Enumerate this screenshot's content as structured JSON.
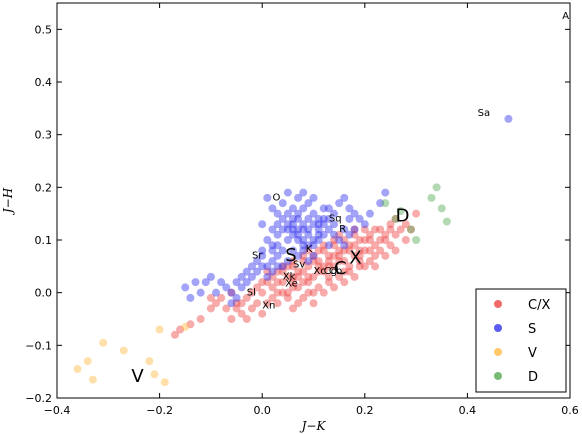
{
  "chart_data": {
    "type": "scatter",
    "xlabel": "J−K",
    "ylabel": "J−H",
    "xlim": [
      -0.4,
      0.6
    ],
    "ylim": [
      -0.2,
      0.55
    ],
    "xticks": [
      "−0.4",
      "−0.2",
      "0.0",
      "0.2",
      "0.4",
      "0.6"
    ],
    "xtick_values": [
      -0.4,
      -0.2,
      0.0,
      0.2,
      0.4,
      0.6
    ],
    "yticks": [
      "−0.2",
      "−0.1",
      "0.0",
      "0.1",
      "0.2",
      "0.3",
      "0.4",
      "0.5"
    ],
    "ytick_values": [
      -0.2,
      -0.1,
      0.0,
      0.1,
      0.2,
      0.3,
      0.4,
      0.5
    ],
    "grid": false,
    "legend_position": "lower-right",
    "series": [
      {
        "name": "C/X",
        "color": "#ee4444",
        "points": [
          [
            0.01,
            -0.02
          ],
          [
            0.02,
            0.01
          ],
          [
            0.03,
            0.0
          ],
          [
            0.04,
            0.02
          ],
          [
            0.05,
            0.03
          ],
          [
            0.06,
            0.01
          ],
          [
            0.07,
            0.04
          ],
          [
            0.08,
            0.02
          ],
          [
            0.09,
            0.05
          ],
          [
            0.1,
            0.03
          ],
          [
            0.11,
            0.06
          ],
          [
            0.12,
            0.04
          ],
          [
            0.13,
            0.07
          ],
          [
            0.14,
            0.05
          ],
          [
            0.15,
            0.08
          ],
          [
            0.16,
            0.06
          ],
          [
            0.17,
            0.09
          ],
          [
            0.18,
            0.07
          ],
          [
            0.19,
            0.1
          ],
          [
            0.2,
            0.08
          ],
          [
            0.21,
            0.11
          ],
          [
            0.22,
            0.09
          ],
          [
            0.23,
            0.12
          ],
          [
            0.24,
            0.1
          ],
          [
            0.25,
            0.13
          ],
          [
            0.26,
            0.11
          ],
          [
            0.05,
            0.05
          ],
          [
            0.08,
            0.07
          ],
          [
            0.11,
            0.08
          ],
          [
            0.14,
            0.1
          ],
          [
            0.03,
            0.04
          ],
          [
            0.06,
            0.06
          ],
          [
            0.09,
            0.08
          ],
          [
            0.12,
            0.09
          ],
          [
            0.15,
            0.11
          ],
          [
            0.18,
            0.12
          ],
          [
            0.0,
            0.0
          ],
          [
            0.02,
            -0.01
          ],
          [
            0.04,
            0.0
          ],
          [
            0.07,
            0.01
          ],
          [
            0.1,
            0.0
          ],
          [
            0.13,
            0.02
          ],
          [
            0.16,
            0.04
          ],
          [
            0.19,
            0.05
          ],
          [
            0.22,
            0.07
          ],
          [
            0.25,
            0.09
          ],
          [
            0.04,
            0.05
          ],
          [
            0.06,
            0.02
          ],
          [
            0.08,
            0.04
          ],
          [
            0.1,
            0.06
          ],
          [
            0.12,
            0.05
          ],
          [
            0.14,
            0.07
          ],
          [
            0.16,
            0.08
          ],
          [
            0.18,
            0.09
          ],
          [
            0.2,
            0.1
          ],
          [
            0.22,
            0.12
          ],
          [
            0.24,
            0.11
          ],
          [
            0.26,
            0.14
          ],
          [
            0.28,
            0.13
          ],
          [
            0.3,
            0.15
          ],
          [
            0.06,
            0.03
          ],
          [
            0.09,
            0.03
          ],
          [
            0.11,
            0.04
          ],
          [
            0.13,
            0.05
          ],
          [
            0.15,
            0.06
          ],
          [
            0.17,
            0.05
          ],
          [
            0.19,
            0.07
          ],
          [
            0.21,
            0.06
          ],
          [
            0.23,
            0.08
          ],
          [
            0.03,
            0.02
          ],
          [
            -0.1,
            -0.03
          ],
          [
            -0.12,
            -0.05
          ],
          [
            -0.14,
            -0.06
          ],
          [
            -0.16,
            -0.07
          ],
          [
            -0.17,
            -0.08
          ],
          [
            -0.08,
            -0.01
          ],
          [
            -0.06,
            0.0
          ],
          [
            -0.05,
            -0.02
          ],
          [
            -0.03,
            -0.01
          ],
          [
            -0.02,
            -0.03
          ],
          [
            -0.01,
            -0.02
          ],
          [
            0.0,
            -0.04
          ],
          [
            -0.04,
            -0.04
          ],
          [
            -0.03,
            -0.05
          ],
          [
            -0.09,
            -0.02
          ],
          [
            -0.07,
            -0.03
          ],
          [
            -0.1,
            -0.01
          ],
          [
            -0.05,
            -0.03
          ],
          [
            -0.02,
            0.0
          ],
          [
            0.01,
            0.02
          ],
          [
            0.05,
            -0.01
          ],
          [
            0.07,
            -0.02
          ],
          [
            0.09,
            0.0
          ],
          [
            0.11,
            0.01
          ],
          [
            0.13,
            0.03
          ],
          [
            0.15,
            0.03
          ],
          [
            0.17,
            0.04
          ],
          [
            0.19,
            0.06
          ],
          [
            0.21,
            0.08
          ],
          [
            0.23,
            0.1
          ],
          [
            0.25,
            0.12
          ],
          [
            0.27,
            0.12
          ],
          [
            0.02,
            0.03
          ],
          [
            0.04,
            0.04
          ],
          [
            0.06,
            0.05
          ],
          [
            0.08,
            0.06
          ],
          [
            0.1,
            0.07
          ],
          [
            0.12,
            0.08
          ],
          [
            0.14,
            0.09
          ],
          [
            0.16,
            0.1
          ],
          [
            0.18,
            0.11
          ],
          [
            0.2,
            0.12
          ],
          [
            0.06,
            -0.03
          ],
          [
            0.08,
            -0.01
          ],
          [
            0.1,
            -0.02
          ],
          [
            0.12,
            0.0
          ],
          [
            0.14,
            0.01
          ],
          [
            0.16,
            0.02
          ],
          [
            0.18,
            0.03
          ],
          [
            0.2,
            0.05
          ],
          [
            0.22,
            0.05
          ],
          [
            0.24,
            0.07
          ],
          [
            0.26,
            0.08
          ],
          [
            0.28,
            0.1
          ],
          [
            0.29,
            0.12
          ],
          [
            -0.01,
            0.01
          ],
          [
            0.0,
            0.02
          ],
          [
            0.01,
            0.04
          ],
          [
            -0.04,
            -0.02
          ],
          [
            -0.06,
            -0.05
          ],
          [
            0.03,
            -0.02
          ],
          [
            0.05,
            0.0
          ],
          [
            0.07,
            0.03
          ],
          [
            0.09,
            0.02
          ],
          [
            0.11,
            0.05
          ],
          [
            0.13,
            0.06
          ],
          [
            0.15,
            0.07
          ],
          [
            0.17,
            0.08
          ],
          [
            0.19,
            0.08
          ],
          [
            0.21,
            0.1
          ]
        ]
      },
      {
        "name": "S",
        "color": "#3333ee",
        "points": [
          [
            0.0,
            0.07
          ],
          [
            0.02,
            0.09
          ],
          [
            0.03,
            0.11
          ],
          [
            0.05,
            0.12
          ],
          [
            0.06,
            0.14
          ],
          [
            0.07,
            0.1
          ],
          [
            0.08,
            0.13
          ],
          [
            0.09,
            0.11
          ],
          [
            0.1,
            0.15
          ],
          [
            0.11,
            0.12
          ],
          [
            0.04,
            0.08
          ],
          [
            0.05,
            0.1
          ],
          [
            0.06,
            0.11
          ],
          [
            0.07,
            0.12
          ],
          [
            0.08,
            0.09
          ],
          [
            0.09,
            0.14
          ],
          [
            0.1,
            0.1
          ],
          [
            0.11,
            0.13
          ],
          [
            0.12,
            0.11
          ],
          [
            0.13,
            0.14
          ],
          [
            0.01,
            0.05
          ],
          [
            0.02,
            0.06
          ],
          [
            0.03,
            0.07
          ],
          [
            0.04,
            0.05
          ],
          [
            0.05,
            0.06
          ],
          [
            0.06,
            0.08
          ],
          [
            0.07,
            0.07
          ],
          [
            0.08,
            0.08
          ],
          [
            0.09,
            0.06
          ],
          [
            0.1,
            0.07
          ],
          [
            -0.02,
            0.03
          ],
          [
            -0.01,
            0.04
          ],
          [
            0.0,
            0.05
          ],
          [
            0.01,
            0.03
          ],
          [
            0.02,
            0.04
          ],
          [
            0.03,
            0.05
          ],
          [
            -0.03,
            0.02
          ],
          [
            -0.04,
            0.01
          ],
          [
            -0.05,
            0.02
          ],
          [
            -0.06,
            0.0
          ],
          [
            -0.07,
            0.01
          ],
          [
            -0.08,
            0.02
          ],
          [
            -0.09,
            0.0
          ],
          [
            -0.05,
            -0.01
          ],
          [
            -0.06,
            -0.02
          ],
          [
            -0.04,
            0.03
          ],
          [
            -0.03,
            0.04
          ],
          [
            -0.02,
            0.05
          ],
          [
            -0.01,
            0.06
          ],
          [
            0.0,
            0.08
          ],
          [
            0.01,
            0.1
          ],
          [
            0.02,
            0.12
          ],
          [
            0.03,
            0.13
          ],
          [
            0.04,
            0.14
          ],
          [
            0.05,
            0.15
          ],
          [
            0.06,
            0.16
          ],
          [
            0.07,
            0.15
          ],
          [
            0.08,
            0.16
          ],
          [
            0.09,
            0.17
          ],
          [
            0.1,
            0.18
          ],
          [
            0.11,
            0.14
          ],
          [
            0.12,
            0.16
          ],
          [
            0.13,
            0.12
          ],
          [
            0.14,
            0.13
          ],
          [
            0.15,
            0.1
          ],
          [
            0.16,
            0.12
          ],
          [
            0.17,
            0.14
          ],
          [
            0.18,
            0.15
          ],
          [
            0.15,
            0.17
          ],
          [
            0.16,
            0.18
          ],
          [
            0.17,
            0.16
          ],
          [
            0.12,
            0.13
          ],
          [
            0.11,
            0.1
          ],
          [
            0.13,
            0.09
          ],
          [
            0.14,
            0.11
          ],
          [
            0.06,
            0.13
          ],
          [
            0.04,
            0.12
          ],
          [
            0.03,
            0.09
          ],
          [
            0.02,
            0.08
          ],
          [
            0.08,
            0.12
          ],
          [
            0.09,
            0.12
          ],
          [
            0.1,
            0.13
          ],
          [
            0.07,
            0.14
          ],
          [
            0.05,
            0.13
          ],
          [
            0.06,
            0.12
          ],
          [
            0.07,
            0.11
          ],
          [
            0.08,
            0.1
          ],
          [
            0.09,
            0.09
          ],
          [
            0.1,
            0.09
          ],
          [
            0.11,
            0.11
          ],
          [
            -0.1,
            0.03
          ],
          [
            -0.11,
            0.02
          ],
          [
            -0.12,
            0.0
          ],
          [
            -0.13,
            0.02
          ],
          [
            -0.14,
            -0.01
          ],
          [
            -0.15,
            0.01
          ],
          [
            0.0,
            0.13
          ],
          [
            0.02,
            0.16
          ],
          [
            0.01,
            0.18
          ],
          [
            0.04,
            0.17
          ],
          [
            0.07,
            0.18
          ],
          [
            0.08,
            0.19
          ],
          [
            0.05,
            0.19
          ],
          [
            0.03,
            0.15
          ],
          [
            0.12,
            0.14
          ],
          [
            0.13,
            0.16
          ],
          [
            0.14,
            0.15
          ],
          [
            0.16,
            0.09
          ],
          [
            0.17,
            0.11
          ],
          [
            0.18,
            0.12
          ],
          [
            0.19,
            0.14
          ],
          [
            0.2,
            0.13
          ],
          [
            0.21,
            0.15
          ],
          [
            0.24,
            0.19
          ],
          [
            0.23,
            0.17
          ],
          [
            0.48,
            0.33
          ]
        ]
      },
      {
        "name": "V",
        "color": "#ffbb44",
        "points": [
          [
            -0.36,
            -0.145
          ],
          [
            -0.34,
            -0.13
          ],
          [
            -0.33,
            -0.165
          ],
          [
            -0.31,
            -0.095
          ],
          [
            -0.27,
            -0.11
          ],
          [
            -0.22,
            -0.13
          ],
          [
            -0.21,
            -0.155
          ],
          [
            -0.2,
            -0.07
          ],
          [
            -0.19,
            -0.17
          ],
          [
            -0.15,
            -0.065
          ]
        ]
      },
      {
        "name": "D",
        "color": "#55aa55",
        "points": [
          [
            0.24,
            0.17
          ],
          [
            0.26,
            0.14
          ],
          [
            0.29,
            0.12
          ],
          [
            0.3,
            0.1
          ],
          [
            0.33,
            0.18
          ],
          [
            0.34,
            0.2
          ],
          [
            0.35,
            0.16
          ],
          [
            0.36,
            0.135
          ],
          [
            0.27,
            0.155
          ]
        ]
      }
    ],
    "annotations": [
      {
        "text": "A",
        "x": 0.585,
        "y": 0.52,
        "size": 10
      },
      {
        "text": "Sa",
        "x": 0.42,
        "y": 0.335,
        "size": 10
      },
      {
        "text": "O",
        "x": 0.02,
        "y": 0.175,
        "size": 10
      },
      {
        "text": "Sq",
        "x": 0.13,
        "y": 0.135,
        "size": 10
      },
      {
        "text": "R",
        "x": 0.15,
        "y": 0.115,
        "size": 10
      },
      {
        "text": "K",
        "x": 0.085,
        "y": 0.077,
        "size": 10
      },
      {
        "text": "Sr",
        "x": -0.02,
        "y": 0.065,
        "size": 10
      },
      {
        "text": "Sv",
        "x": 0.06,
        "y": 0.048,
        "size": 10
      },
      {
        "text": "Xc",
        "x": 0.1,
        "y": 0.035,
        "size": 10
      },
      {
        "text": "Cg",
        "x": 0.12,
        "y": 0.035,
        "size": 10
      },
      {
        "text": "Cb",
        "x": 0.13,
        "y": 0.035,
        "size": 10
      },
      {
        "text": "Xk",
        "x": 0.04,
        "y": 0.025,
        "size": 10
      },
      {
        "text": "Xe",
        "x": 0.045,
        "y": 0.012,
        "size": 10
      },
      {
        "text": "Sl",
        "x": -0.03,
        "y": -0.005,
        "size": 10
      },
      {
        "text": "Xn",
        "x": 0.0,
        "y": -0.03,
        "size": 10
      },
      {
        "text": "S",
        "x": 0.045,
        "y": 0.06,
        "size": 18
      },
      {
        "text": "C",
        "x": 0.14,
        "y": 0.035,
        "size": 18
      },
      {
        "text": "X",
        "x": 0.17,
        "y": 0.055,
        "size": 18
      },
      {
        "text": "D",
        "x": 0.26,
        "y": 0.135,
        "size": 18
      },
      {
        "text": "V",
        "x": -0.255,
        "y": -0.17,
        "size": 18
      }
    ]
  }
}
